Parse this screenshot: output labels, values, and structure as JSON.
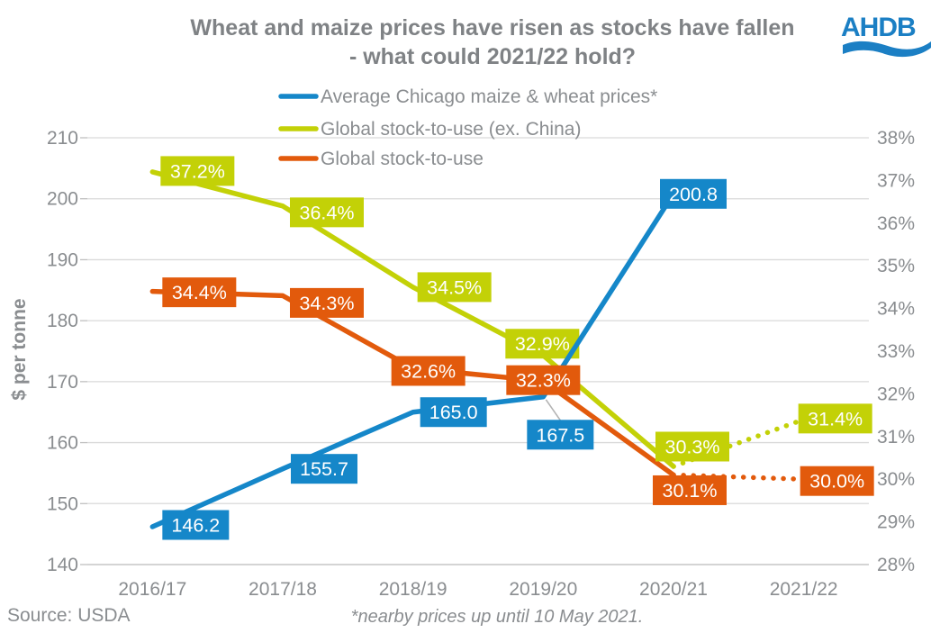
{
  "title": {
    "line1": "Wheat and maize prices have risen as stocks have fallen",
    "line2": "- what could 2021/22 hold?"
  },
  "logo": {
    "text": "AHDB",
    "color": "#1b7fc4"
  },
  "colors": {
    "blue": "#1587c9",
    "yellow": "#c3d107",
    "orange": "#e25a0c",
    "grid": "#d9d9d9",
    "baseline": "#bfbfbf",
    "axis_text": "#8a8d90",
    "title_text": "#7f8285",
    "label_text": "#ffffff",
    "leader": "#b3b3b3"
  },
  "chart_data": {
    "type": "line",
    "title": "Wheat and maize prices have risen as stocks have fallen - what could 2021/22 hold?",
    "categories": [
      "2016/17",
      "2017/18",
      "2018/19",
      "2019/20",
      "2020/21",
      "2021/22"
    ],
    "left_axis": {
      "label": "$ per tonne",
      "min": 140,
      "max": 210,
      "step": 10,
      "ticks": [
        "140",
        "150",
        "160",
        "170",
        "180",
        "190",
        "200",
        "210"
      ]
    },
    "right_axis": {
      "min": 28,
      "max": 38,
      "step": 1,
      "unit": "%",
      "ticks": [
        "28%",
        "29%",
        "30%",
        "31%",
        "32%",
        "33%",
        "34%",
        "35%",
        "36%",
        "37%",
        "38%"
      ]
    },
    "grid": true,
    "legend_position": "top",
    "series": [
      {
        "name": "Average Chicago maize & wheat prices*",
        "axis": "left",
        "color_key": "blue",
        "style": "solid",
        "dotted_from": null,
        "values": [
          146.2,
          155.7,
          165.0,
          167.5,
          200.8,
          null
        ],
        "point_labels": [
          "146.2",
          "155.7",
          "165.0",
          "167.5",
          "200.8",
          null
        ]
      },
      {
        "name": "Global stock-to-use (ex. China)",
        "axis": "right",
        "color_key": "yellow",
        "style": "solid-then-dotted",
        "dotted_from": 4,
        "values": [
          37.2,
          36.4,
          34.5,
          32.9,
          30.3,
          31.4
        ],
        "point_labels": [
          "37.2%",
          "36.4%",
          "34.5%",
          "32.9%",
          "30.3%",
          "31.4%"
        ]
      },
      {
        "name": "Global stock-to-use",
        "axis": "right",
        "color_key": "orange",
        "style": "solid-then-dotted",
        "dotted_from": 4,
        "values": [
          34.4,
          34.3,
          32.6,
          32.3,
          30.1,
          30.0
        ],
        "point_labels": [
          "34.4%",
          "34.3%",
          "32.6%",
          "32.3%",
          "30.1%",
          "30.0%"
        ]
      }
    ]
  },
  "footer": {
    "source": "Source: USDA",
    "footnote": "*nearby prices up until 10 May 2021."
  }
}
